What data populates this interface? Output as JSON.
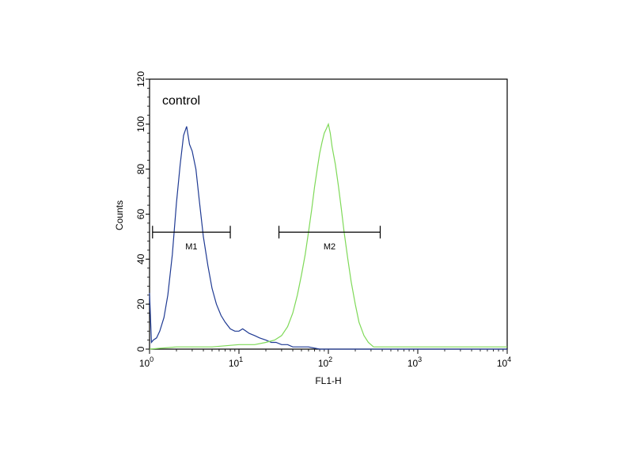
{
  "chart_data": {
    "type": "line",
    "title": "",
    "annotation": "control",
    "xlabel": "FL1-H",
    "ylabel": "Counts",
    "x_scale": "log",
    "xlim": [
      1,
      10000
    ],
    "ylim": [
      0,
      120
    ],
    "x_tick_labels": [
      {
        "base": "10",
        "exp": "0"
      },
      {
        "base": "10",
        "exp": "1"
      },
      {
        "base": "10",
        "exp": "2"
      },
      {
        "base": "10",
        "exp": "3"
      },
      {
        "base": "10",
        "exp": "4"
      }
    ],
    "y_ticks": [
      0,
      20,
      40,
      60,
      80,
      100,
      120
    ],
    "grid": false,
    "colors": {
      "series_blue": "#1f3a93",
      "series_green": "#7ed957"
    },
    "series": [
      {
        "color": "#1f3a93",
        "x": [
          1.0,
          1.05,
          1.1,
          1.2,
          1.3,
          1.45,
          1.6,
          1.8,
          2.0,
          2.2,
          2.4,
          2.6,
          2.8,
          3.0,
          3.3,
          3.6,
          4.0,
          4.5,
          5.0,
          5.6,
          6.3,
          7.0,
          8.0,
          9.0,
          10,
          11,
          12,
          13,
          15,
          17,
          20,
          23,
          26,
          30,
          35,
          40,
          50,
          60,
          80,
          100,
          150,
          200,
          300,
          500,
          1000,
          2000,
          5000,
          10000
        ],
        "y": [
          25,
          3,
          4,
          5,
          8,
          14,
          24,
          42,
          65,
          82,
          95,
          99,
          91,
          88,
          80,
          66,
          50,
          37,
          27,
          20,
          15,
          12,
          9,
          8,
          8,
          9,
          8,
          7,
          6,
          5,
          4,
          3,
          3,
          2,
          2,
          1,
          1,
          1,
          0,
          0,
          0,
          0,
          0,
          0,
          0,
          0,
          0,
          0
        ]
      },
      {
        "color": "#7ed957",
        "x": [
          1.0,
          2.0,
          5.0,
          10,
          15,
          20,
          25,
          30,
          35,
          40,
          45,
          50,
          55,
          60,
          65,
          70,
          75,
          80,
          85,
          90,
          95,
          100,
          105,
          110,
          120,
          130,
          140,
          150,
          165,
          180,
          200,
          220,
          250,
          280,
          320,
          400,
          500,
          700,
          1000,
          2000,
          5000,
          10000
        ],
        "y": [
          0,
          1,
          1,
          2,
          2,
          3,
          4,
          6,
          10,
          16,
          24,
          33,
          42,
          52,
          62,
          72,
          80,
          87,
          92,
          96,
          98,
          100,
          96,
          90,
          82,
          72,
          62,
          52,
          40,
          30,
          20,
          12,
          6,
          3,
          1,
          1,
          1,
          1,
          1,
          1,
          1,
          1
        ]
      }
    ],
    "markers": [
      {
        "label": "M1",
        "x_start": 1.08,
        "x_end": 8.0,
        "y": 52
      },
      {
        "label": "M2",
        "x_start": 28,
        "x_end": 380,
        "y": 52
      }
    ]
  }
}
